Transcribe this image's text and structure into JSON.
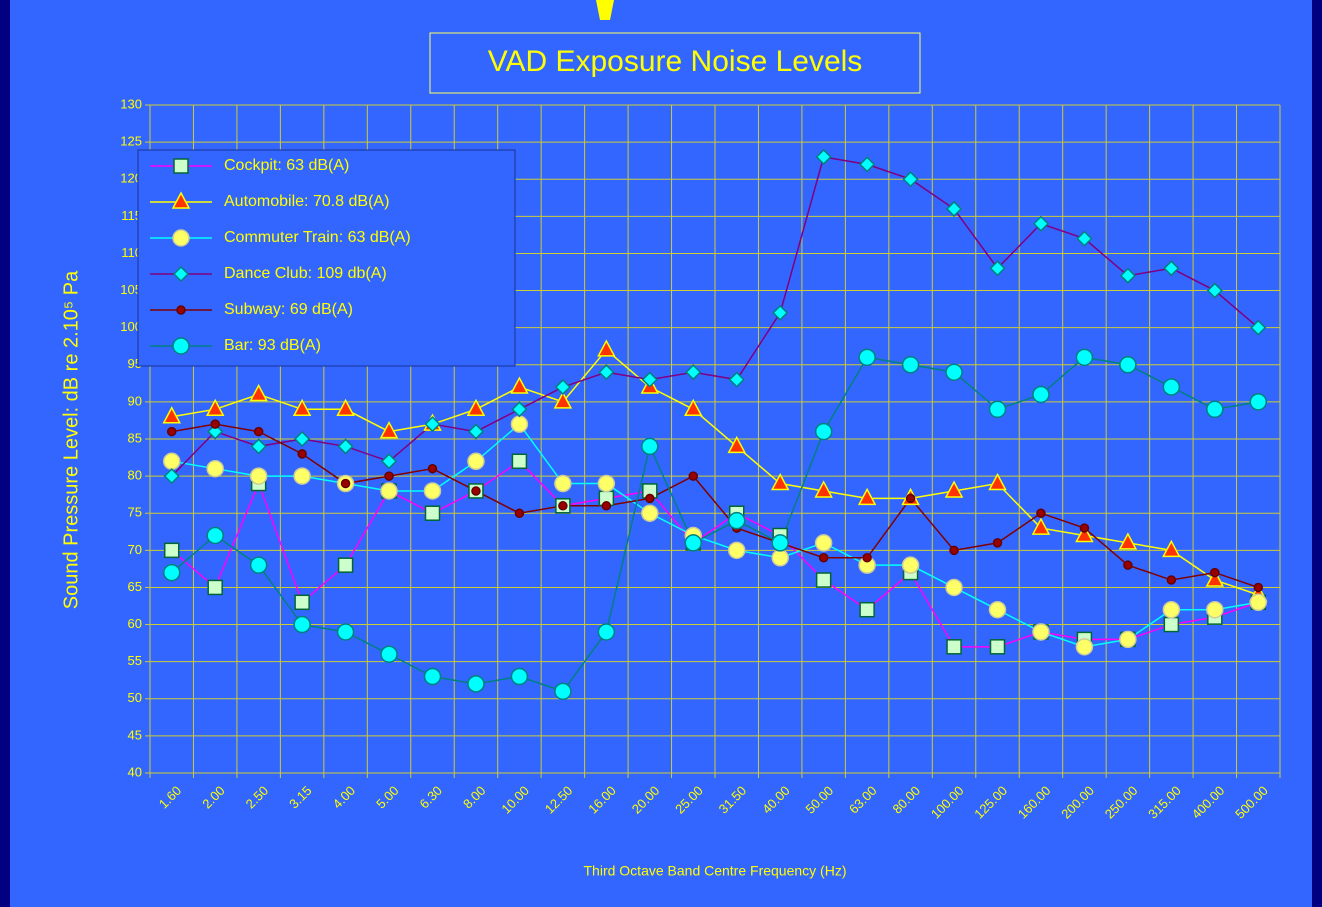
{
  "chart_data": {
    "type": "line",
    "title": "VAD Exposure Noise Levels",
    "xlabel": "Third Octave Band Centre Frequency (Hz)",
    "ylabel": "Sound Pressure Level: dB re 2.10⁵ Pa",
    "categories": [
      "1.60",
      "2.00",
      "2.50",
      "3.15",
      "4.00",
      "5.00",
      "6.30",
      "8.00",
      "10.00",
      "12.50",
      "16.00",
      "20.00",
      "25.00",
      "31.50",
      "40.00",
      "50.00",
      "63.00",
      "80.00",
      "100.00",
      "125.00",
      "160.00",
      "200.00",
      "250.00",
      "315.00",
      "400.00",
      "500.00"
    ],
    "ylim": [
      40,
      130
    ],
    "yticks": [
      40,
      45,
      50,
      55,
      60,
      65,
      70,
      75,
      80,
      85,
      90,
      95,
      100,
      105,
      110,
      115,
      120,
      125,
      130
    ],
    "grid": true,
    "legend": "upper-left",
    "series": [
      {
        "name": "Cockpit: 63 dB(A)",
        "color": "#ff00ff",
        "marker": "square",
        "marker_color": "#ccffcc",
        "marker_edge": "#006633",
        "values": [
          70,
          65,
          79,
          63,
          68,
          78,
          75,
          78,
          82,
          76,
          77,
          78,
          71,
          75,
          72,
          66,
          62,
          67,
          57,
          57,
          59,
          58,
          58,
          60,
          61,
          63
        ]
      },
      {
        "name": "Automobile: 70.8 dB(A)",
        "color": "#ffff00",
        "marker": "triangle",
        "marker_color": "#ff3300",
        "marker_edge": "#ffff00",
        "values": [
          88,
          89,
          91,
          89,
          89,
          86,
          87,
          89,
          92,
          90,
          97,
          92,
          89,
          84,
          79,
          78,
          77,
          77,
          78,
          79,
          73,
          72,
          71,
          70,
          66,
          64
        ]
      },
      {
        "name": "Commuter Train: 63 dB(A)",
        "color": "#00ffff",
        "marker": "circle",
        "marker_color": "#ffff66",
        "marker_edge": "#cccc99",
        "values": [
          82,
          81,
          80,
          80,
          79,
          78,
          78,
          82,
          87,
          79,
          79,
          75,
          72,
          70,
          69,
          71,
          68,
          68,
          65,
          62,
          59,
          57,
          58,
          62,
          62,
          63
        ]
      },
      {
        "name": "Dance Club: 109 db(A)",
        "color": "#800080",
        "marker": "diamond",
        "marker_color": "#00ffff",
        "marker_edge": "#008080",
        "values": [
          80,
          86,
          84,
          85,
          84,
          82,
          87,
          86,
          89,
          92,
          94,
          93,
          94,
          93,
          102,
          123,
          122,
          120,
          116,
          108,
          114,
          112,
          107,
          108,
          105,
          100
        ]
      },
      {
        "name": "Subway: 69 dB(A)",
        "color": "#800000",
        "marker": "dot",
        "marker_color": "#990000",
        "marker_edge": "#660000",
        "values": [
          86,
          87,
          86,
          83,
          79,
          80,
          81,
          78,
          75,
          76,
          76,
          77,
          80,
          73,
          71,
          69,
          69,
          77,
          70,
          71,
          75,
          73,
          68,
          66,
          67,
          65
        ]
      },
      {
        "name": "Bar: 93 dB(A)",
        "color": "#008080",
        "marker": "circle",
        "marker_color": "#00ffff",
        "marker_edge": "#008080",
        "values": [
          67,
          72,
          68,
          60,
          59,
          56,
          53,
          52,
          53,
          51,
          59,
          84,
          71,
          74,
          71,
          86,
          96,
          95,
          94,
          89,
          91,
          96,
          95,
          92,
          89,
          90
        ]
      }
    ]
  }
}
